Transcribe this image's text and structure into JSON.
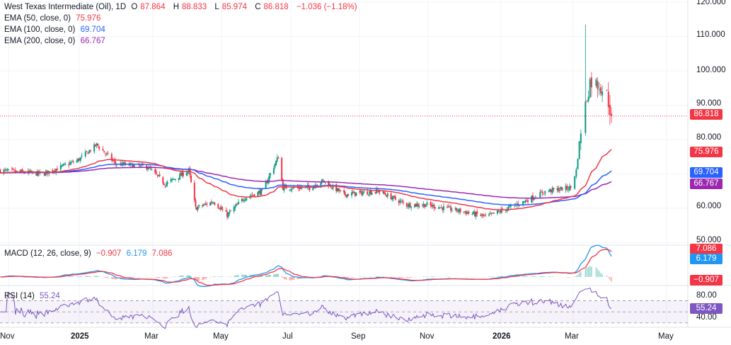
{
  "header": {
    "symbol": "West Texas Intermediate (Oil), 1D",
    "open_label": "O",
    "open": "87.864",
    "high_label": "H",
    "high": "88.833",
    "low_label": "L",
    "low": "85.974",
    "close_label": "C",
    "close": "86.818",
    "change": "−1.036 (−1.18%)"
  },
  "indicators": {
    "ema50": {
      "label": "EMA (50, close, 0)",
      "value": "75.976",
      "color": "#f23645"
    },
    "ema100": {
      "label": "EMA (100, close, 0)",
      "value": "69.704",
      "color": "#2962ff"
    },
    "ema200": {
      "label": "EMA (200, close, 0)",
      "value": "66.767",
      "color": "#9c27b0"
    },
    "macd": {
      "label": "MACD (12, 26, close, 9)",
      "hist": "−0.907",
      "macd": "6.179",
      "signal": "7.086",
      "macd_color": "#2196f3",
      "signal_color": "#f23645"
    },
    "rsi": {
      "label": "RSI (14)",
      "value": "55.24",
      "color": "#7e57c2"
    }
  },
  "price_axis": [
    "120.000",
    "110.000",
    "100.000",
    "90.000",
    "80.000",
    "60.000",
    "50.000"
  ],
  "rsi_axis": [
    "80.00",
    "40.00"
  ],
  "time_axis": [
    "Nov",
    "2025",
    "Mar",
    "May",
    "Jul",
    "Sep",
    "Nov",
    "2026",
    "Mar",
    "May"
  ],
  "chart_data": {
    "type": "candlestick",
    "ylim": [
      50,
      120
    ],
    "up_color": "#089981",
    "down_color": "#f23645",
    "last_price": 86.818,
    "time_ticks": [
      "2024-11-01",
      "2025-01-01",
      "2025-03-01",
      "2025-05-01",
      "2025-07-01",
      "2025-09-01",
      "2025-11-01",
      "2026-01-01",
      "2026-03-01",
      "2026-05-01"
    ],
    "approx_close_path": [
      [
        "2024-10-25",
        71
      ],
      [
        "2024-12-01",
        70
      ],
      [
        "2024-12-31",
        74
      ],
      [
        "2025-01-15",
        78.5
      ],
      [
        "2025-01-30",
        73
      ],
      [
        "2025-02-25",
        72
      ],
      [
        "2025-03-12",
        67
      ],
      [
        "2025-04-02",
        71
      ],
      [
        "2025-04-08",
        60
      ],
      [
        "2025-04-24",
        62
      ],
      [
        "2025-05-06",
        58
      ],
      [
        "2025-05-21",
        63
      ],
      [
        "2025-06-06",
        65
      ],
      [
        "2025-06-20",
        75
      ],
      [
        "2025-06-24",
        66
      ],
      [
        "2025-07-18",
        66
      ],
      [
        "2025-07-30",
        68
      ],
      [
        "2025-08-18",
        64
      ],
      [
        "2025-09-18",
        65
      ],
      [
        "2025-10-13",
        61
      ],
      [
        "2025-10-31",
        61
      ],
      [
        "2025-12-01",
        59
      ],
      [
        "2025-12-20",
        57.5
      ],
      [
        "2026-01-20",
        62
      ],
      [
        "2026-02-07",
        65
      ],
      [
        "2026-02-27",
        66
      ],
      [
        "2026-03-03",
        71
      ],
      [
        "2026-03-06",
        83
      ],
      [
        "2026-03-09",
        90
      ],
      [
        "2026-03-12",
        97
      ],
      [
        "2026-03-18",
        96
      ],
      [
        "2026-03-23",
        93
      ],
      [
        "2026-03-26",
        86.8
      ]
    ]
  }
}
